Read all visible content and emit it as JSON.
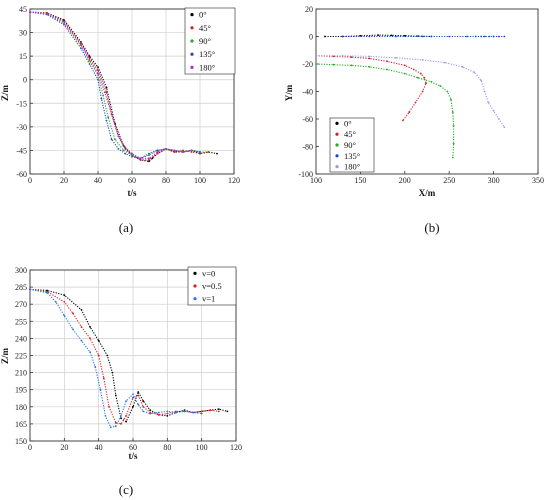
{
  "chart_data": [
    {
      "type": "scatter",
      "caption": "(a)",
      "xlabel": "t/s",
      "ylabel": "Z/m",
      "xlim": [
        0,
        120
      ],
      "ylim": [
        -60,
        45
      ],
      "xticks": [
        0,
        20,
        40,
        60,
        80,
        100,
        120
      ],
      "yticks": [
        -60,
        -45,
        -30,
        -15,
        0,
        15,
        30,
        45
      ],
      "grid": true,
      "legend": "top-right",
      "series": [
        {
          "name": "0°",
          "color": "#000000",
          "x": [
            0,
            10,
            20,
            30,
            35,
            40,
            45,
            50,
            55,
            60,
            65,
            70,
            72,
            75,
            80,
            85,
            90,
            95,
            100,
            105,
            110
          ],
          "y": [
            43,
            42.5,
            38,
            24,
            15,
            8,
            -5,
            -28,
            -42,
            -48,
            -51,
            -52,
            -50,
            -47,
            -44,
            -46,
            -46,
            -45,
            -47,
            -46,
            -47
          ]
        },
        {
          "name": "45°",
          "color": "#cc2222",
          "x": [
            0,
            10,
            20,
            30,
            35,
            40,
            45,
            48,
            52,
            56,
            60,
            65,
            70,
            75,
            80,
            85,
            90,
            95,
            100,
            105
          ],
          "y": [
            43,
            42.5,
            37,
            23,
            14,
            6,
            -8,
            -22,
            -36,
            -44,
            -48,
            -51,
            -51,
            -47,
            -44,
            -46,
            -45,
            -46,
            -47,
            -46
          ]
        },
        {
          "name": "90°",
          "color": "#22aa22",
          "x": [
            0,
            10,
            20,
            30,
            35,
            40,
            43,
            46,
            50,
            55,
            60,
            65,
            70,
            75,
            80,
            85,
            90,
            95,
            100,
            105
          ],
          "y": [
            43,
            42,
            36,
            22,
            12,
            3,
            -10,
            -24,
            -38,
            -45,
            -48,
            -50,
            -48,
            -45,
            -44,
            -45,
            -46,
            -45,
            -46,
            -46
          ]
        },
        {
          "name": "135°",
          "color": "#2244cc",
          "x": [
            0,
            10,
            20,
            30,
            35,
            40,
            42,
            45,
            48,
            52,
            56,
            60,
            65,
            70,
            75,
            80,
            85,
            90,
            95,
            100
          ],
          "y": [
            43,
            41.5,
            35,
            20,
            10,
            0,
            -12,
            -26,
            -38,
            -44,
            -47,
            -49,
            -50,
            -47,
            -45,
            -44,
            -45,
            -46,
            -45,
            -46
          ]
        },
        {
          "name": "180°",
          "color": "#cc22cc",
          "x": [
            0,
            10,
            20,
            30,
            35,
            40,
            44,
            48,
            52,
            56,
            60,
            65,
            70,
            75,
            80,
            85,
            90,
            95
          ],
          "y": [
            43,
            42,
            37,
            22,
            13,
            4,
            -8,
            -22,
            -36,
            -43,
            -47,
            -50,
            -50,
            -46,
            -44,
            -45,
            -46,
            -45
          ]
        }
      ]
    },
    {
      "type": "scatter",
      "caption": "(b)",
      "xlabel": "X/m",
      "ylabel": "Y/m",
      "xlim": [
        100,
        350
      ],
      "ylim": [
        -100,
        20
      ],
      "xticks": [
        100,
        150,
        200,
        250,
        300,
        350
      ],
      "yticks": [
        -100,
        -80,
        -60,
        -40,
        -20,
        0,
        20
      ],
      "grid": false,
      "legend": "bottom-left",
      "series": [
        {
          "name": "0°",
          "color": "#000000",
          "x": [
            110,
            130,
            150,
            170,
            185,
            200,
            215,
            230
          ],
          "y": [
            0,
            0,
            0.5,
            1,
            0.8,
            0.5,
            0.3,
            0
          ]
        },
        {
          "name": "45°",
          "color": "#cc2222",
          "x": [
            100,
            120,
            140,
            160,
            180,
            200,
            210,
            218,
            222,
            224,
            220,
            212,
            205,
            198
          ],
          "y": [
            -14,
            -14.5,
            -15,
            -16,
            -18,
            -21,
            -24,
            -27,
            -30,
            -34,
            -40,
            -48,
            -55,
            -61
          ]
        },
        {
          "name": "90°",
          "color": "#22aa22",
          "x": [
            100,
            120,
            140,
            160,
            180,
            200,
            215,
            230,
            240,
            248,
            252,
            254,
            255,
            255,
            254
          ],
          "y": [
            -20,
            -20.5,
            -21,
            -22,
            -24,
            -27,
            -30,
            -33,
            -36,
            -40,
            -46,
            -55,
            -65,
            -78,
            -88
          ]
        },
        {
          "name": "135°",
          "color": "#2244cc",
          "x": [
            130,
            160,
            190,
            220,
            250,
            270,
            280,
            286,
            290,
            295,
            300,
            306,
            312
          ],
          "y": [
            0,
            0,
            0,
            0,
            0,
            0,
            0,
            0,
            0,
            0,
            0,
            0,
            0
          ]
        },
        {
          "name": "180°",
          "color": "#9999ee",
          "x": [
            100,
            130,
            160,
            190,
            220,
            245,
            265,
            278,
            286,
            290,
            294,
            300,
            306,
            312
          ],
          "y": [
            -14,
            -14,
            -14.5,
            -15.5,
            -17,
            -19,
            -22,
            -26,
            -32,
            -40,
            -48,
            -54,
            -60,
            -66
          ]
        }
      ]
    },
    {
      "type": "scatter",
      "caption": "(c)",
      "xlabel": "t/s",
      "ylabel": "Z/m",
      "xlim": [
        0,
        120
      ],
      "ylim": [
        150,
        300
      ],
      "xticks": [
        0,
        20,
        40,
        60,
        80,
        100,
        120
      ],
      "yticks": [
        150,
        165,
        180,
        195,
        210,
        225,
        240,
        255,
        270,
        285,
        300
      ],
      "grid": true,
      "legend": "top-right",
      "series": [
        {
          "name": "v=0",
          "color": "#000000",
          "x": [
            0,
            10,
            20,
            30,
            35,
            40,
            45,
            48,
            50,
            53,
            56,
            60,
            63,
            66,
            70,
            75,
            80,
            85,
            90,
            95,
            100,
            105,
            110,
            115
          ],
          "y": [
            283,
            282,
            278,
            265,
            250,
            238,
            225,
            210,
            190,
            170,
            167,
            180,
            193,
            185,
            177,
            173,
            172,
            175,
            177,
            175,
            176,
            177,
            178,
            176
          ]
        },
        {
          "name": "v=0.5",
          "color": "#dd2222",
          "x": [
            0,
            10,
            20,
            25,
            30,
            35,
            40,
            43,
            46,
            50,
            53,
            56,
            60,
            63,
            66,
            70,
            75,
            80,
            85,
            90,
            95,
            100,
            105,
            110
          ],
          "y": [
            283,
            281,
            272,
            262,
            250,
            240,
            225,
            205,
            180,
            166,
            165,
            172,
            188,
            190,
            180,
            175,
            173,
            174,
            176,
            176,
            175,
            176,
            177,
            176
          ]
        },
        {
          "name": "v=1",
          "color": "#2277ee",
          "x": [
            0,
            10,
            15,
            20,
            25,
            30,
            35,
            38,
            41,
            44,
            47,
            50,
            53,
            56,
            60,
            63,
            66,
            70,
            75,
            80,
            85,
            90,
            95,
            100
          ],
          "y": [
            283,
            280,
            272,
            260,
            248,
            238,
            228,
            215,
            195,
            172,
            162,
            163,
            172,
            185,
            191,
            182,
            176,
            174,
            175,
            176,
            175,
            176,
            175,
            174
          ]
        }
      ]
    }
  ]
}
